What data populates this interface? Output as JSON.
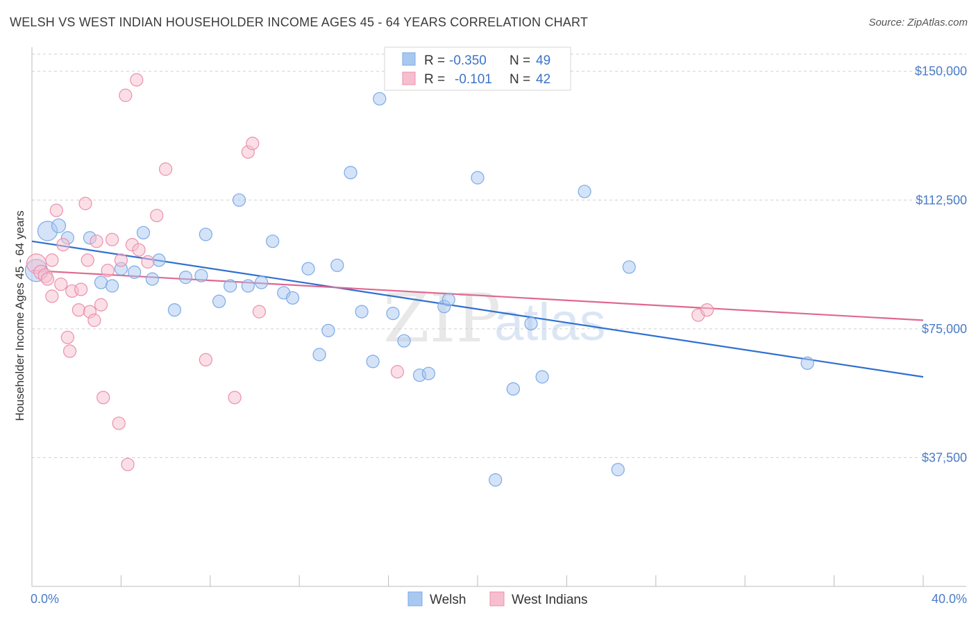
{
  "header": {
    "title": "WELSH VS WEST INDIAN HOUSEHOLDER INCOME AGES 45 - 64 YEARS CORRELATION CHART",
    "source": "Source: ZipAtlas.com"
  },
  "watermark": {
    "zip": "ZIP",
    "atlas": "atlas"
  },
  "stats_legend": [
    {
      "r_label": "R =",
      "r_value": "-0.350",
      "n_label": "N =",
      "n_value": "49",
      "color": "#7aaae8",
      "fill": "#a9c8f0"
    },
    {
      "r_label": "R =",
      "r_value": "-0.101",
      "n_label": "N =",
      "n_value": "42",
      "color": "#ec8fac",
      "fill": "#f6bfd0"
    }
  ],
  "chart_data": {
    "type": "scatter",
    "title": "WELSH VS WEST INDIAN HOUSEHOLDER INCOME AGES 45 - 64 YEARS CORRELATION CHART",
    "xlabel": "",
    "ylabel": "Householder Income Ages 45 - 64 years",
    "xlim": [
      0,
      40
    ],
    "ylim": [
      0,
      155000
    ],
    "x_tick_labels": [
      "0.0%",
      "40.0%"
    ],
    "y_ticks": [
      37500,
      75000,
      112500,
      150000
    ],
    "y_tick_labels": [
      "$37,500",
      "$75,000",
      "$112,500",
      "$150,000"
    ],
    "grid": true,
    "legend_position": "bottom-center",
    "series": [
      {
        "name": "Welsh",
        "color": "#7aaae8",
        "fill": "#a9c8f0",
        "trend": {
          "x": [
            0,
            40
          ],
          "y": [
            100500,
            61000
          ],
          "color": "#2f6fd0"
        },
        "points": [
          [
            0.2,
            92000,
            16
          ],
          [
            0.7,
            103500,
            14
          ],
          [
            1.2,
            105000,
            10
          ],
          [
            1.6,
            101500,
            9
          ],
          [
            2.6,
            101500,
            9
          ],
          [
            3.1,
            88500,
            9
          ],
          [
            3.6,
            87500,
            9
          ],
          [
            4.0,
            92500,
            9
          ],
          [
            4.6,
            91500,
            9
          ],
          [
            5.0,
            103000,
            9
          ],
          [
            5.4,
            89500,
            9
          ],
          [
            5.7,
            95000,
            9
          ],
          [
            6.4,
            80500,
            9
          ],
          [
            6.9,
            90000,
            9
          ],
          [
            7.6,
            90500,
            9
          ],
          [
            7.8,
            102500,
            9
          ],
          [
            8.4,
            83000,
            9
          ],
          [
            8.9,
            87500,
            9
          ],
          [
            9.3,
            112500,
            9
          ],
          [
            9.7,
            87500,
            9
          ],
          [
            10.3,
            88500,
            9
          ],
          [
            10.8,
            100500,
            9
          ],
          [
            11.3,
            85500,
            9
          ],
          [
            11.7,
            84000,
            9
          ],
          [
            12.4,
            92500,
            9
          ],
          [
            12.9,
            67500,
            9
          ],
          [
            13.3,
            74500,
            9
          ],
          [
            13.7,
            93500,
            9
          ],
          [
            14.3,
            120500,
            9
          ],
          [
            14.8,
            80000,
            9
          ],
          [
            15.3,
            65500,
            9
          ],
          [
            15.6,
            142000,
            9
          ],
          [
            16.2,
            79500,
            9
          ],
          [
            16.7,
            71500,
            9
          ],
          [
            17.4,
            61500,
            9
          ],
          [
            17.8,
            62000,
            9
          ],
          [
            18.5,
            81500,
            9
          ],
          [
            18.7,
            83500,
            9
          ],
          [
            20.0,
            119000,
            9
          ],
          [
            20.8,
            31000,
            9
          ],
          [
            21.6,
            57500,
            9
          ],
          [
            22.4,
            76500,
            9
          ],
          [
            22.9,
            61000,
            9
          ],
          [
            24.8,
            115000,
            9
          ],
          [
            26.3,
            34000,
            9
          ],
          [
            26.8,
            93000,
            9
          ],
          [
            34.8,
            65000,
            9
          ]
        ]
      },
      {
        "name": "West Indians",
        "color": "#ec8fac",
        "fill": "#f6bfd0",
        "trend": {
          "x": [
            0,
            40
          ],
          "y": [
            92000,
            77500
          ],
          "color": "#e06890"
        },
        "points": [
          [
            0.2,
            94000,
            14
          ],
          [
            0.4,
            91500,
            10
          ],
          [
            0.6,
            90500,
            10
          ],
          [
            0.7,
            89500,
            9
          ],
          [
            0.9,
            84500,
            9
          ],
          [
            0.9,
            95000,
            9
          ],
          [
            1.1,
            109500,
            9
          ],
          [
            1.3,
            88000,
            9
          ],
          [
            1.4,
            99500,
            9
          ],
          [
            1.6,
            72500,
            9
          ],
          [
            1.7,
            68500,
            9
          ],
          [
            1.8,
            86000,
            9
          ],
          [
            2.1,
            80500,
            9
          ],
          [
            2.2,
            86500,
            9
          ],
          [
            2.4,
            111500,
            9
          ],
          [
            2.5,
            95000,
            9
          ],
          [
            2.6,
            80000,
            9
          ],
          [
            2.8,
            77500,
            9
          ],
          [
            2.9,
            100500,
            9
          ],
          [
            3.1,
            82000,
            9
          ],
          [
            3.2,
            55000,
            9
          ],
          [
            3.4,
            92000,
            9
          ],
          [
            3.6,
            101000,
            9
          ],
          [
            3.9,
            47500,
            9
          ],
          [
            4.0,
            95000,
            9
          ],
          [
            4.2,
            143000,
            9
          ],
          [
            4.3,
            35500,
            9
          ],
          [
            4.5,
            99500,
            9
          ],
          [
            4.7,
            147500,
            9
          ],
          [
            4.8,
            98000,
            9
          ],
          [
            5.2,
            94500,
            9
          ],
          [
            5.6,
            108000,
            9
          ],
          [
            6.0,
            121500,
            9
          ],
          [
            7.8,
            66000,
            9
          ],
          [
            9.1,
            55000,
            9
          ],
          [
            9.7,
            126500,
            9
          ],
          [
            9.9,
            129000,
            9
          ],
          [
            10.2,
            80000,
            9
          ],
          [
            16.4,
            62500,
            9
          ],
          [
            29.9,
            79000,
            9
          ],
          [
            30.3,
            80500,
            9
          ]
        ]
      }
    ]
  },
  "bottom_legend": [
    {
      "label": "Welsh",
      "color": "#7aaae8",
      "fill": "#a9c8f0"
    },
    {
      "label": "West Indians",
      "color": "#ec8fac",
      "fill": "#f6bfd0"
    }
  ]
}
